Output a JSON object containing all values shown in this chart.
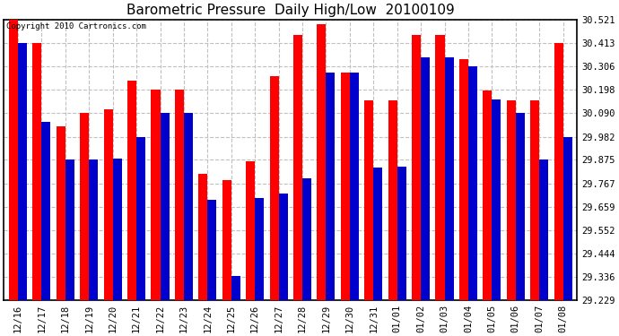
{
  "title": "Barometric Pressure  Daily High/Low  20100109",
  "copyright": "Copyright 2010 Cartronics.com",
  "dates": [
    "12/16",
    "12/17",
    "12/18",
    "12/19",
    "12/20",
    "12/21",
    "12/22",
    "12/23",
    "12/24",
    "12/25",
    "12/26",
    "12/27",
    "12/28",
    "12/29",
    "12/30",
    "12/31",
    "01/01",
    "01/02",
    "01/03",
    "01/04",
    "01/05",
    "01/06",
    "01/07",
    "01/08"
  ],
  "highs": [
    30.521,
    30.413,
    30.03,
    30.09,
    30.11,
    30.24,
    30.198,
    30.198,
    29.81,
    29.78,
    29.867,
    30.26,
    30.45,
    30.5,
    30.28,
    30.15,
    30.15,
    30.45,
    30.45,
    30.34,
    30.195,
    30.15,
    30.15,
    30.413
  ],
  "lows": [
    30.413,
    30.05,
    29.875,
    29.875,
    29.88,
    29.982,
    30.09,
    30.09,
    29.69,
    29.34,
    29.7,
    29.72,
    29.79,
    30.28,
    30.28,
    29.84,
    29.845,
    30.35,
    30.35,
    30.306,
    30.155,
    30.09,
    29.875,
    29.982
  ],
  "ymin": 29.229,
  "ymax": 30.521,
  "yticks": [
    29.229,
    29.336,
    29.444,
    29.552,
    29.659,
    29.767,
    29.875,
    29.982,
    30.09,
    30.198,
    30.306,
    30.413,
    30.521
  ],
  "bar_width": 0.38,
  "high_color": "#ff0000",
  "low_color": "#0000cc",
  "bg_color": "#ffffff",
  "plot_bg_color": "#ffffff",
  "grid_color": "#c0c0c0",
  "title_fontsize": 11,
  "tick_fontsize": 7.5
}
